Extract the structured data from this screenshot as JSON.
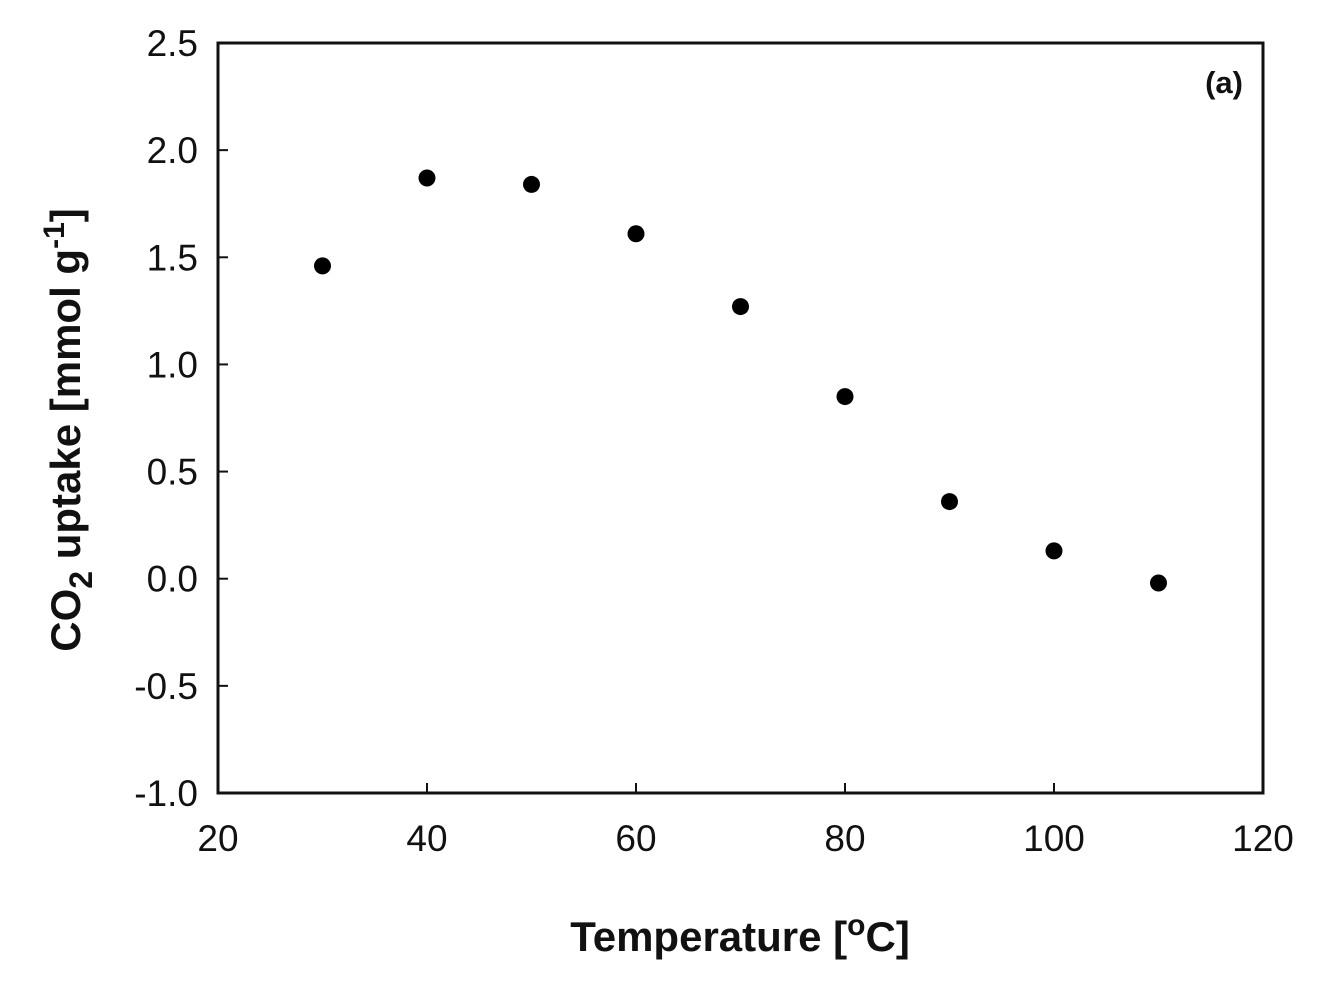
{
  "chart_data": {
    "type": "scatter",
    "panel_label": "(a)",
    "xlabel": {
      "text": "Temperature [",
      "superscript": "o",
      "suffix": "C]"
    },
    "ylabel": {
      "prefix": "CO",
      "subscript": "2",
      "middle": " uptake [mmol g",
      "superscript": "-1",
      "suffix": "]"
    },
    "xlim": [
      20,
      120
    ],
    "ylim": [
      -1.0,
      2.5
    ],
    "x_ticks": [
      20,
      40,
      60,
      80,
      100,
      120
    ],
    "x_tick_labels": [
      "20",
      "40",
      "60",
      "80",
      "100",
      "120"
    ],
    "y_ticks": [
      -1.0,
      -0.5,
      0.0,
      0.5,
      1.0,
      1.5,
      2.0,
      2.5
    ],
    "y_tick_labels": [
      "-1.0",
      "-0.5",
      "0.0",
      "0.5",
      "1.0",
      "1.5",
      "2.0",
      "2.5"
    ],
    "grid": false,
    "marker_color": "#000000",
    "series": [
      {
        "x": [
          30,
          40,
          50,
          60,
          70,
          80,
          90,
          100,
          110
        ],
        "y": [
          1.46,
          1.87,
          1.84,
          1.61,
          1.27,
          0.85,
          0.36,
          0.13,
          -0.02
        ]
      }
    ]
  }
}
